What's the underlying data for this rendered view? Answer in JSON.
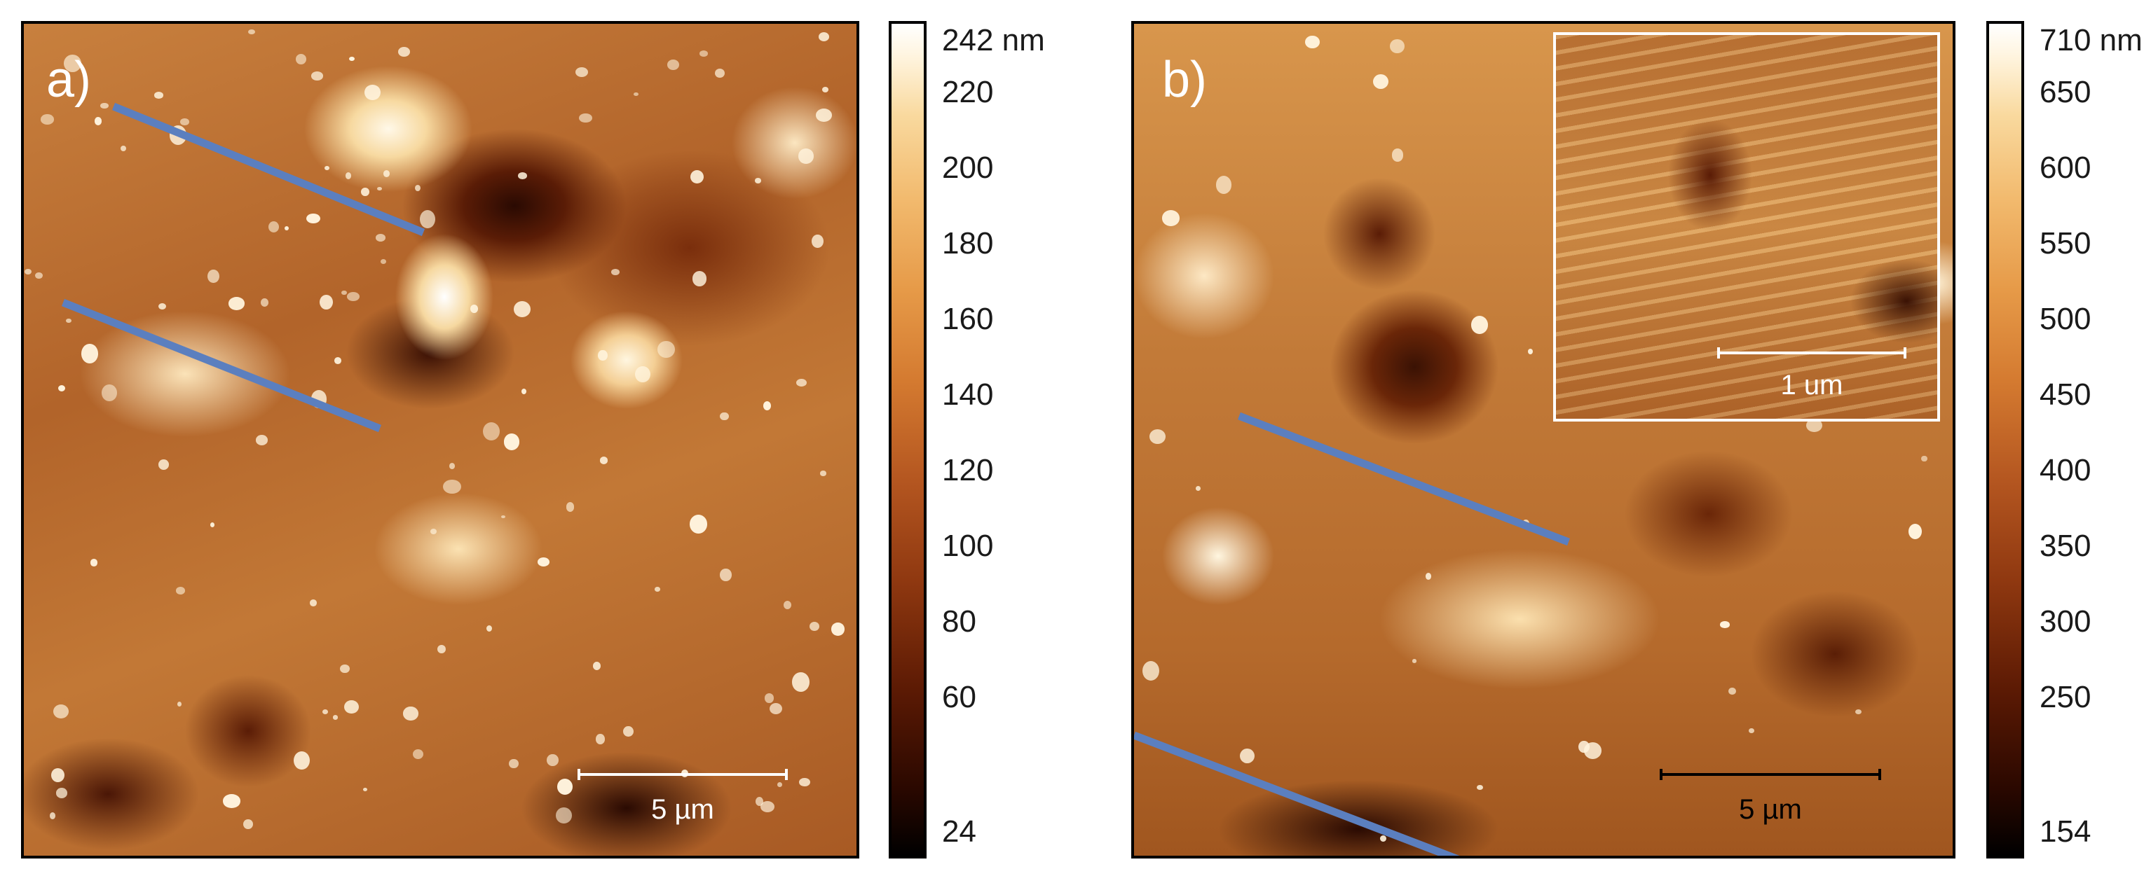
{
  "panel_a": {
    "label": "a)",
    "scale_bar": "5 µm",
    "colorbar": {
      "max_label": "242 nm",
      "ticks": [
        "220",
        "200",
        "180",
        "160",
        "140",
        "120",
        "100",
        "80",
        "60"
      ],
      "min_label": "24"
    }
  },
  "panel_b": {
    "label": "b)",
    "scale_bar": "5 µm",
    "inset": {
      "scale_bar": "1 um"
    },
    "colorbar": {
      "max_label": "710 nm",
      "ticks": [
        "650",
        "600",
        "550",
        "500",
        "450",
        "400",
        "350",
        "300",
        "250"
      ],
      "min_label": "154"
    }
  },
  "colors": {
    "profile_line": "#5b7fbf"
  }
}
